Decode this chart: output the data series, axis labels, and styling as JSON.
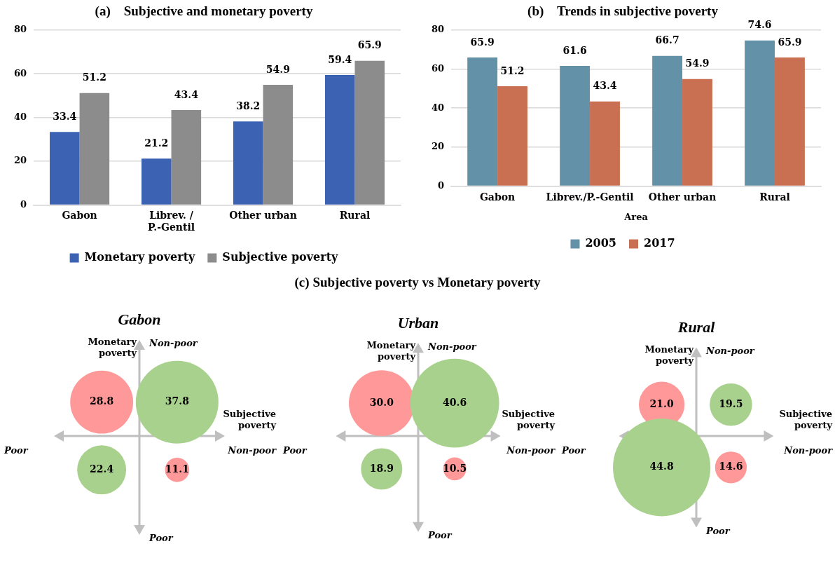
{
  "chart_data": [
    {
      "type": "bar",
      "title": "(a)    Subjective and monetary poverty",
      "categories": [
        "Gabon",
        "Librev. / P.-Gentil",
        "Other urban",
        "Rural"
      ],
      "series": [
        {
          "name": "Monetary poverty",
          "color": "#3c63b3",
          "values": [
            33.4,
            21.2,
            38.2,
            59.4
          ]
        },
        {
          "name": "Subjective poverty",
          "color": "#8c8c8c",
          "values": [
            51.2,
            43.4,
            54.9,
            65.9
          ]
        }
      ],
      "ylim": [
        0,
        80
      ],
      "yticks": [
        0,
        20,
        40,
        60,
        80
      ],
      "grid": "y",
      "legend": "bottom",
      "data_labels": true
    },
    {
      "type": "bar",
      "title": "(b)    Trends in subjective poverty",
      "xlabel": "Area",
      "categories": [
        "Gabon",
        "Librev./P.-Gentil",
        "Other urban",
        "Rural"
      ],
      "series": [
        {
          "name": "2005",
          "color": "#6392a8",
          "values": [
            65.9,
            61.6,
            66.7,
            74.6
          ]
        },
        {
          "name": "2017",
          "color": "#c97053",
          "values": [
            51.2,
            43.4,
            54.9,
            65.9
          ]
        }
      ],
      "ylim": [
        0,
        80
      ],
      "yticks": [
        0,
        20,
        40,
        60,
        80
      ],
      "grid": "y",
      "legend": "bottom",
      "data_labels": true
    },
    {
      "type": "other",
      "title": "(c)    Subjective poverty vs Monetary poverty"
    },
    {
      "type": "other",
      "title": "Gabon",
      "xlabel": "Subjective poverty",
      "ylabel": "Monetary poverty",
      "values": [
        28.8,
        37.8,
        22.4,
        11.1
      ],
      "colors": [
        "#ff9999",
        "#a9d18e",
        "#a9d18e",
        "#ff9999"
      ],
      "data_labels": true,
      "annotations": [
        "Non-poor",
        "Non-poor",
        "Poor",
        "Poor"
      ]
    },
    {
      "type": "other",
      "title": "Urban",
      "xlabel": "Subjective poverty",
      "ylabel": "Monetary poverty",
      "values": [
        30.0,
        40.6,
        18.9,
        10.5
      ],
      "colors": [
        "#ff9999",
        "#a9d18e",
        "#a9d18e",
        "#ff9999"
      ],
      "value_labels": [
        "30.0",
        "40.6",
        "18.9",
        "10.5"
      ],
      "annotations": [
        "Non-poor",
        "Non-poor",
        "Poor",
        "Poor"
      ]
    },
    {
      "type": "other",
      "title": "Rural",
      "xlabel": "Subjective poverty",
      "ylabel": "Monetary poverty",
      "values": [
        21.0,
        19.5,
        44.8,
        14.6
      ],
      "colors": [
        "#ff9999",
        "#a9d18e",
        "#a9d18e",
        "#ff9999"
      ],
      "value_labels": [
        "21.0",
        "19.5",
        "44.8",
        "14.6"
      ],
      "annotations": [
        "Non-poor",
        "Non-poor",
        "Poor",
        "Poor"
      ]
    }
  ]
}
